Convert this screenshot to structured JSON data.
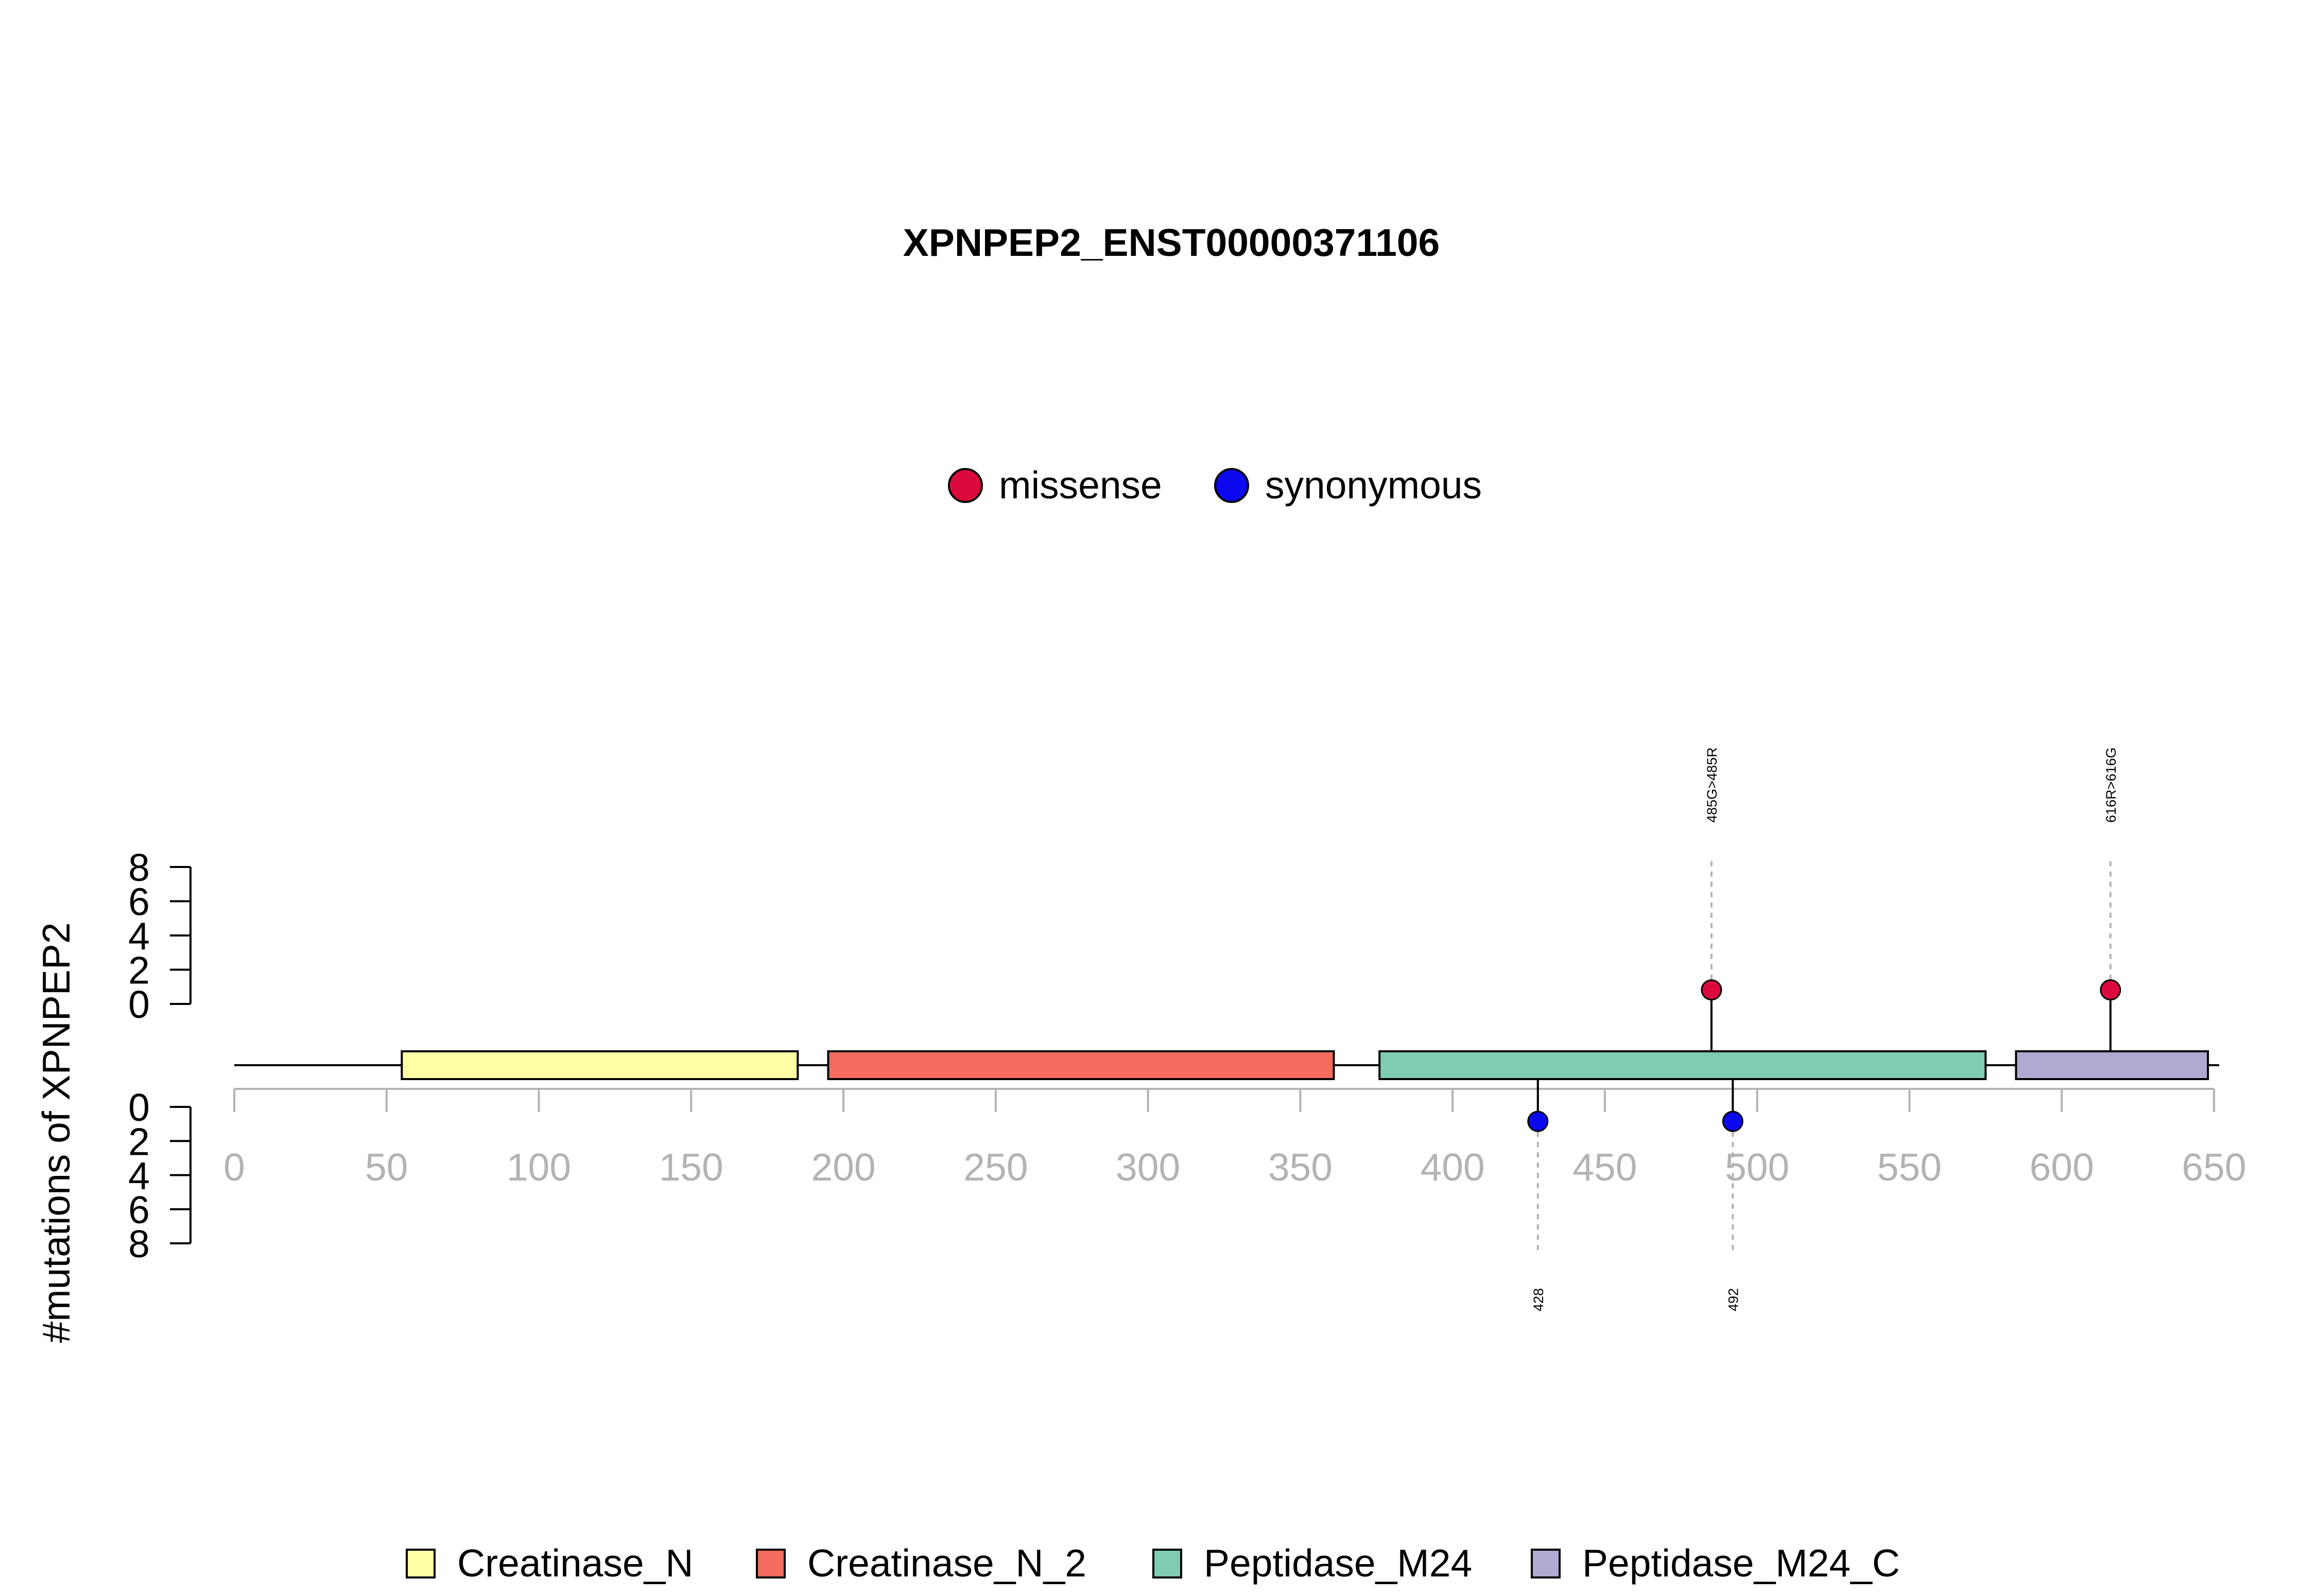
{
  "chart_data": {
    "type": "lollipop",
    "title": "XPNPEP2_ENST00000371106",
    "ylabel": "#mutations of XPNPEP2",
    "xlim": [
      0,
      650
    ],
    "x_ticks": [
      "0",
      "50",
      "100",
      "150",
      "200",
      "250",
      "300",
      "350",
      "400",
      "450",
      "500",
      "550",
      "600",
      "650"
    ],
    "y_ticks": [
      "0",
      "2",
      "4",
      "6",
      "8"
    ],
    "ylim": [
      0,
      8
    ],
    "protein_length": 650,
    "mutation_legend": [
      {
        "name": "missense",
        "color": "#dc0a3c"
      },
      {
        "name": "synonymous",
        "color": "#0b08f0"
      }
    ],
    "domains": [
      {
        "name": "Creatinase_N",
        "start": 55,
        "end": 185,
        "color": "#ffffa6"
      },
      {
        "name": "Creatinase_N_2",
        "start": 195,
        "end": 361,
        "color": "#f46b5f"
      },
      {
        "name": "Peptidase_M24",
        "start": 376,
        "end": 575,
        "color": "#7fcbb4"
      },
      {
        "name": "Peptidase_M24_C",
        "start": 585,
        "end": 648,
        "color": "#b1a9d1"
      }
    ],
    "mutations": [
      {
        "position": 485,
        "count": 1,
        "type": "missense",
        "label": "485G>485R",
        "side": "top"
      },
      {
        "position": 616,
        "count": 1,
        "type": "missense",
        "label": "616R>616G",
        "side": "top"
      },
      {
        "position": 428,
        "count": 1,
        "type": "synonymous",
        "label": "428",
        "side": "bottom"
      },
      {
        "position": 492,
        "count": 1,
        "type": "synonymous",
        "label": "492",
        "side": "bottom"
      }
    ]
  }
}
